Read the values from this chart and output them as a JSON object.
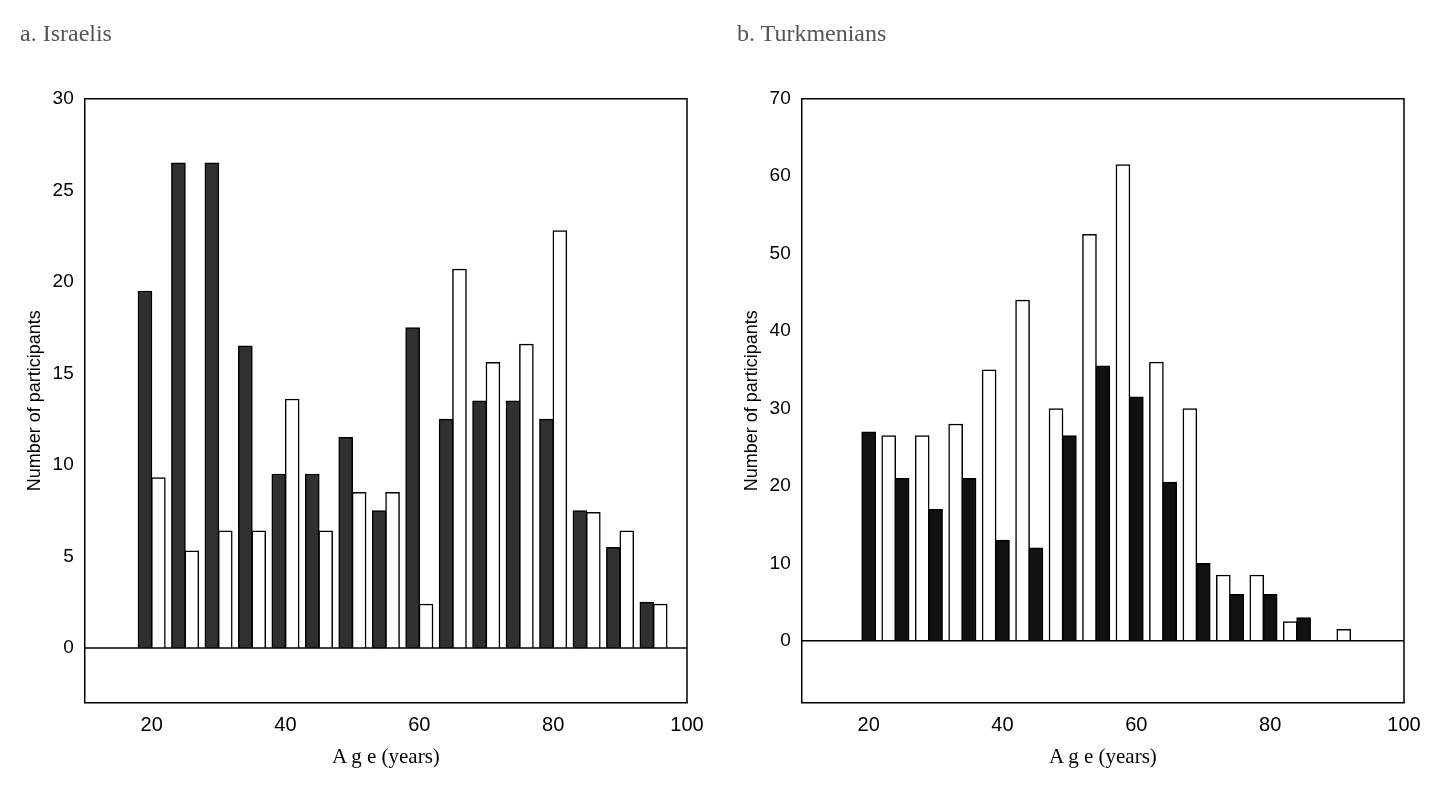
{
  "chart_data": [
    {
      "type": "bar",
      "title": "a. Israelis",
      "xlabel": "A g e (years)",
      "ylabel": "Number of participants",
      "xlim": [
        10,
        100
      ],
      "xticks": [
        20,
        40,
        60,
        80,
        100
      ],
      "ylim": [
        -3,
        30
      ],
      "yticks": [
        0,
        5,
        10,
        15,
        20,
        25,
        30
      ],
      "grid": false,
      "legend": false,
      "ref_lines": [
        {
          "axis": "y",
          "value": 0
        }
      ],
      "series": [
        {
          "color": "#303030",
          "x": [
            19,
            24,
            29,
            34,
            39,
            44,
            49,
            54,
            59,
            64,
            69,
            74,
            79,
            84,
            89,
            94
          ],
          "values": [
            19.5,
            26.5,
            26.5,
            16.5,
            9.5,
            9.5,
            11.5,
            7.5,
            17.5,
            12.5,
            13.5,
            13.5,
            12.5,
            7.5,
            5.5,
            2.5
          ]
        },
        {
          "color": "#ffffff",
          "x": [
            21,
            26,
            31,
            36,
            41,
            46,
            51,
            56,
            61,
            66,
            71,
            76,
            81,
            86,
            91,
            96
          ],
          "values": [
            9.3,
            5.3,
            6.4,
            6.4,
            13.6,
            6.4,
            8.5,
            8.5,
            2.4,
            20.7,
            15.6,
            16.6,
            22.8,
            7.4,
            6.4,
            2.4
          ]
        }
      ]
    },
    {
      "type": "bar",
      "title": "b. Turkmenians",
      "xlabel": "A g e (years)",
      "ylabel": "Number of participants",
      "xlim": [
        10,
        100
      ],
      "xticks": [
        20,
        40,
        60,
        80,
        100
      ],
      "ylim": [
        -8,
        70
      ],
      "yticks": [
        0,
        10,
        20,
        30,
        40,
        50,
        60,
        70
      ],
      "grid": false,
      "legend": false,
      "ref_lines": [
        {
          "axis": "y",
          "value": 0
        }
      ],
      "series": [
        {
          "color": "#111111",
          "x": [
            20,
            25,
            30,
            35,
            40,
            45,
            50,
            55,
            60,
            65,
            70,
            75,
            80,
            85
          ],
          "values": [
            27,
            21,
            17,
            21,
            13,
            12,
            26.5,
            35.5,
            31.5,
            20.5,
            10,
            6,
            6,
            3
          ]
        },
        {
          "color": "#ffffff",
          "x": [
            23,
            28,
            33,
            38,
            43,
            48,
            53,
            58,
            63,
            68,
            73,
            78,
            83,
            91
          ],
          "values": [
            26.5,
            26.5,
            28,
            35,
            44,
            30,
            52.5,
            61.5,
            36,
            30,
            8.5,
            8.5,
            2.5,
            1.5
          ]
        }
      ]
    }
  ]
}
